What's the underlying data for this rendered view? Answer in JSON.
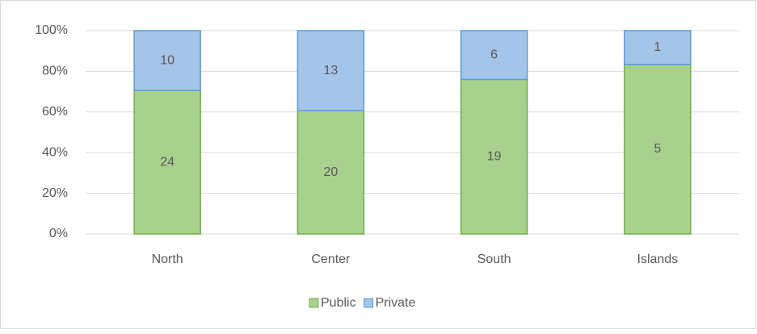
{
  "chart_data": {
    "type": "bar",
    "stacked": "percent",
    "categories": [
      "North",
      "Center",
      "South",
      "Islands"
    ],
    "series": [
      {
        "name": "Public",
        "color": "#a9d18e",
        "values": [
          24,
          20,
          19,
          5
        ]
      },
      {
        "name": "Private",
        "color": "#a4c4e8",
        "values": [
          10,
          13,
          6,
          1
        ]
      }
    ],
    "ylim": [
      0,
      100
    ],
    "yticks": [
      {
        "value": 0,
        "label": "0%"
      },
      {
        "value": 20,
        "label": "20%"
      },
      {
        "value": 40,
        "label": "40%"
      },
      {
        "value": 60,
        "label": "60%"
      },
      {
        "value": 80,
        "label": "80%"
      },
      {
        "value": 100,
        "label": "100%"
      }
    ],
    "grid": true,
    "legend": "bottom"
  }
}
